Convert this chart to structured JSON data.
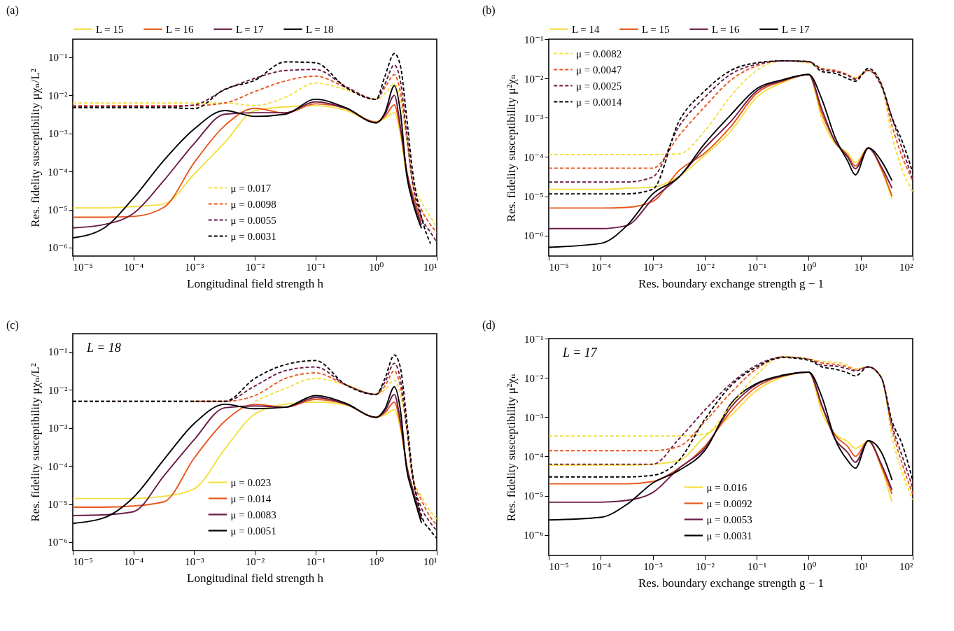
{
  "chart_data": [
    {
      "type": "line",
      "title": "(a)",
      "xlabel": "Longitudinal field strength h",
      "ylabel": "Res. fidelity susceptibility μχₙ/L²",
      "log": "xy",
      "legend": "top",
      "x": [
        1e-05,
        3.2e-05,
        0.0001,
        0.00032,
        0.001,
        0.0032,
        0.01,
        0.032,
        0.1,
        0.32,
        1,
        1.4,
        2,
        2.5,
        3.2,
        4,
        5.6,
        7.9,
        10
      ],
      "xlim": [
        1e-05,
        10
      ],
      "xticks": [
        {
          "value": 1e-05,
          "label": "10⁻⁵"
        },
        {
          "value": 0.0001,
          "label": "10⁻⁴"
        },
        {
          "value": 0.001,
          "label": "10⁻³"
        },
        {
          "value": 0.01,
          "label": "10⁻²"
        },
        {
          "value": 0.1,
          "label": "10⁻¹"
        },
        {
          "value": 1,
          "label": "10⁰"
        },
        {
          "value": 10,
          "label": "10¹"
        }
      ],
      "ylim": [
        6e-07,
        0.3
      ],
      "yticks": [
        {
          "value": 1e-06,
          "label": "10⁻⁶"
        },
        {
          "value": 1e-05,
          "label": "10⁻⁵"
        },
        {
          "value": 0.0001,
          "label": "10⁻⁴"
        },
        {
          "value": 0.001,
          "label": "10⁻³"
        },
        {
          "value": 0.01,
          "label": "10⁻²"
        },
        {
          "value": 0.1,
          "label": "10⁻¹"
        }
      ],
      "series": [
        {
          "name": "L = 15",
          "color": "#f3df40",
          "line_style": "solid",
          "values": [
            1.1e-05,
            1.1e-05,
            1.2e-05,
            1.4e-05,
            8.5e-05,
            0.00058,
            0.004,
            0.005,
            0.0054,
            0.004,
            0.002,
            0.0025,
            0.0035,
            0.001,
            7.9e-05,
            2.5e-05,
            5.6e-06,
            null,
            null
          ]
        },
        {
          "name": "L = 16",
          "color": "#e9561d",
          "line_style": "solid",
          "values": [
            6.3e-06,
            6.3e-06,
            6.6e-06,
            1.15e-05,
            0.00017,
            0.0016,
            0.0046,
            0.0034,
            0.006,
            0.0045,
            0.002,
            0.0028,
            0.0056,
            0.0013,
            0.0001,
            2.5e-05,
            5e-06,
            null,
            null
          ]
        },
        {
          "name": "L = 17",
          "color": "#6b1a48",
          "line_style": "solid",
          "values": [
            3.3e-06,
            4e-06,
            7.9e-06,
            5.9e-05,
            0.00054,
            0.0032,
            0.0035,
            0.0035,
            0.0068,
            0.0045,
            0.0019,
            0.0032,
            0.01,
            0.0016,
            0.0001,
            2e-05,
            4e-06,
            null,
            null
          ]
        },
        {
          "name": "L = 18",
          "color": "#000000",
          "line_style": "solid",
          "values": [
            1.8e-06,
            3.2e-06,
            2e-05,
            0.0002,
            0.0013,
            0.004,
            0.0028,
            0.0032,
            0.0079,
            0.0047,
            0.0019,
            0.0035,
            0.018,
            0.004,
            7.9e-05,
            1.6e-05,
            3.2e-06,
            null,
            null
          ]
        },
        {
          "name": "μ = 0.017",
          "color": "#f3df40",
          "line_style": "dashed",
          "values": [
            0.0063,
            0.0063,
            0.0063,
            0.0063,
            0.0063,
            0.0063,
            0.0054,
            0.0089,
            0.021,
            0.014,
            0.0079,
            0.011,
            0.02,
            0.0079,
            0.0007,
            6.3e-05,
            1.6e-05,
            6.3e-06,
            3.5e-06
          ]
        },
        {
          "name": "μ = 0.0098",
          "color": "#e9561d",
          "line_style": "dashed",
          "values": [
            0.0054,
            0.0054,
            0.0054,
            0.0054,
            0.0054,
            0.0063,
            0.0126,
            0.024,
            0.032,
            0.016,
            0.0079,
            0.016,
            0.035,
            0.0126,
            0.00079,
            5e-05,
            1e-05,
            4e-06,
            2.5e-06
          ]
        },
        {
          "name": "μ = 0.0055",
          "color": "#6b1a48",
          "line_style": "dashed",
          "values": [
            0.005,
            0.005,
            0.005,
            0.005,
            0.0056,
            0.014,
            0.028,
            0.045,
            0.048,
            0.017,
            0.0079,
            0.02,
            0.063,
            0.025,
            0.001,
            5e-05,
            6.3e-06,
            2.5e-06,
            1.4e-06
          ]
        },
        {
          "name": "μ = 0.0031",
          "color": "#000000",
          "line_style": "dashed",
          "values": [
            0.0048,
            0.0048,
            0.0048,
            0.0048,
            0.0045,
            0.0145,
            0.025,
            0.076,
            0.072,
            0.016,
            0.0079,
            0.032,
            0.126,
            0.063,
            0.0025,
            0.0001,
            6.3e-06,
            1.26e-06,
            null
          ]
        }
      ]
    },
    {
      "type": "line",
      "title": "(b)",
      "xlabel": "Res. boundary exchange strength g − 1",
      "ylabel": "Res. fidelity susceptibility μ²χₙ",
      "log": "xy",
      "legend": "top",
      "x": [
        1e-05,
        0.0001,
        0.00032,
        0.001,
        0.0032,
        0.01,
        0.032,
        0.1,
        0.32,
        1,
        1.8,
        3.2,
        5.6,
        7.9,
        14,
        25,
        40,
        63,
        100
      ],
      "xlim": [
        1e-05,
        100
      ],
      "xticks": [
        {
          "value": 1e-05,
          "label": "10⁻⁵"
        },
        {
          "value": 0.0001,
          "label": "10⁻⁴"
        },
        {
          "value": 0.001,
          "label": "10⁻³"
        },
        {
          "value": 0.01,
          "label": "10⁻²"
        },
        {
          "value": 0.1,
          "label": "10⁻¹"
        },
        {
          "value": 1,
          "label": "10⁰"
        },
        {
          "value": 10,
          "label": "10¹"
        },
        {
          "value": 100,
          "label": "10²"
        }
      ],
      "ylim": [
        3e-07,
        0.1
      ],
      "yticks": [
        {
          "value": 1e-06,
          "label": "10⁻⁶"
        },
        {
          "value": 1e-05,
          "label": "10⁻⁵"
        },
        {
          "value": 0.0001,
          "label": "10⁻⁴"
        },
        {
          "value": 0.001,
          "label": "10⁻³"
        },
        {
          "value": 0.01,
          "label": "10⁻²"
        },
        {
          "value": 0.1,
          "label": "10⁻¹"
        }
      ],
      "series": [
        {
          "name": "L = 14",
          "color": "#f3df40",
          "line_style": "solid",
          "values": [
            1.5e-05,
            1.5e-05,
            1.6e-05,
            1.7e-05,
            3.2e-05,
            0.00011,
            0.00046,
            0.0033,
            0.0079,
            0.0126,
            0.00093,
            0.00022,
            0.000126,
            7.2e-05,
            0.00017,
            4.7e-05,
            8.5e-06,
            null,
            null
          ]
        },
        {
          "name": "L = 15",
          "color": "#e9561d",
          "line_style": "solid",
          "values": [
            5e-06,
            5e-06,
            5.2e-06,
            7.4e-06,
            4.5e-05,
            0.000126,
            0.0006,
            0.0042,
            0.0085,
            0.0126,
            0.00126,
            0.00025,
            0.00011,
            5.9e-05,
            0.00017,
            5e-05,
            1e-05,
            null,
            null
          ]
        },
        {
          "name": "L = 16",
          "color": "#6b1a48",
          "line_style": "solid",
          "values": [
            1.5e-06,
            1.5e-06,
            1.8e-06,
            8.5e-06,
            3.1e-05,
            0.00017,
            0.00081,
            0.0048,
            0.0089,
            0.0126,
            0.0016,
            0.00025,
            0.0001,
            5e-05,
            0.00017,
            5.6e-05,
            1.6e-05,
            null,
            null
          ]
        },
        {
          "name": "L = 17",
          "color": "#000000",
          "line_style": "solid",
          "values": [
            5e-07,
            6.3e-07,
            1.8e-06,
            1.15e-05,
            3.1e-05,
            0.00022,
            0.0012,
            0.0055,
            0.0093,
            0.0126,
            0.0029,
            0.00032,
            7.9e-05,
            3.5e-05,
            0.00017,
            7.9e-05,
            2.5e-05,
            null,
            null
          ]
        },
        {
          "name": "μ = 0.0082",
          "color": "#f3df40",
          "line_style": "dashed",
          "values": [
            0.000115,
            0.000115,
            0.000115,
            0.000115,
            0.00012,
            0.00046,
            0.0036,
            0.016,
            0.028,
            0.025,
            0.017,
            0.016,
            0.012,
            0.0105,
            0.016,
            0.0068,
            0.00035,
            4.7e-05,
            1.3e-05
          ]
        },
        {
          "name": "μ = 0.0047",
          "color": "#e9561d",
          "line_style": "dashed",
          "values": [
            5.2e-05,
            5.2e-05,
            5.2e-05,
            5.2e-05,
            0.00035,
            0.0019,
            0.0091,
            0.021,
            0.028,
            0.026,
            0.018,
            0.016,
            0.0126,
            0.01,
            0.016,
            0.0071,
            0.00063,
            0.0001,
            2.5e-05
          ]
        },
        {
          "name": "μ = 0.0025",
          "color": "#6b1a48",
          "line_style": "dashed",
          "values": [
            2.3e-05,
            2.3e-05,
            2.3e-05,
            3.1e-05,
            0.0006,
            0.0033,
            0.0129,
            0.023,
            0.028,
            0.027,
            0.017,
            0.015,
            0.012,
            0.0095,
            0.016,
            0.0063,
            0.001,
            0.00016,
            2.8e-05
          ]
        },
        {
          "name": "μ = 0.0014",
          "color": "#000000",
          "line_style": "dashed",
          "values": [
            1.15e-05,
            1.15e-05,
            1.15e-05,
            1.5e-05,
            0.00081,
            0.0048,
            0.016,
            0.025,
            0.028,
            0.027,
            0.015,
            0.0135,
            0.01,
            0.0085,
            0.018,
            0.0071,
            0.001,
            0.00025,
            4e-05
          ]
        }
      ]
    },
    {
      "type": "line",
      "title": "(c)",
      "xlabel": "Longitudinal field strength h",
      "ylabel": "Res. fidelity susceptibility μχₙ/L²",
      "log": "xy",
      "legend": "bottom",
      "annotations": [
        "L = 18"
      ],
      "x": [
        1e-05,
        3.2e-05,
        0.0001,
        0.00032,
        0.001,
        0.0032,
        0.01,
        0.032,
        0.1,
        0.32,
        1,
        1.4,
        2,
        2.5,
        3.2,
        4,
        5.6,
        7.9,
        10
      ],
      "xlim": [
        1e-05,
        10
      ],
      "xticks": [
        {
          "value": 1e-05,
          "label": "10⁻⁵"
        },
        {
          "value": 0.0001,
          "label": "10⁻⁴"
        },
        {
          "value": 0.001,
          "label": "10⁻³"
        },
        {
          "value": 0.01,
          "label": "10⁻²"
        },
        {
          "value": 0.1,
          "label": "10⁻¹"
        },
        {
          "value": 1,
          "label": "10⁰"
        },
        {
          "value": 10,
          "label": "10¹"
        }
      ],
      "ylim": [
        6e-07,
        0.3
      ],
      "yticks": [
        {
          "value": 1e-06,
          "label": "10⁻⁶"
        },
        {
          "value": 1e-05,
          "label": "10⁻⁵"
        },
        {
          "value": 0.0001,
          "label": "10⁻⁴"
        },
        {
          "value": 0.001,
          "label": "10⁻³"
        },
        {
          "value": 0.01,
          "label": "10⁻²"
        },
        {
          "value": 0.1,
          "label": "10⁻¹"
        }
      ],
      "series": [
        {
          "name": "μ = 0.023",
          "color": "#f3df40",
          "line_style": "solid",
          "values": [
            1.4e-05,
            1.4e-05,
            1.4e-05,
            1.6e-05,
            2.5e-05,
            0.00028,
            0.0023,
            0.0042,
            0.0048,
            0.004,
            0.0019,
            0.0022,
            0.003,
            0.001,
            0.0001,
            2.5e-05,
            4e-06,
            null,
            null
          ]
        },
        {
          "name": "μ = 0.014",
          "color": "#e9561d",
          "line_style": "solid",
          "values": [
            8.3e-06,
            8.3e-06,
            8.9e-06,
            1.15e-05,
            0.00016,
            0.0015,
            0.0042,
            0.0035,
            0.0056,
            0.0042,
            0.0019,
            0.0025,
            0.0048,
            0.0013,
            0.0001,
            2.5e-05,
            4e-06,
            null,
            null
          ]
        },
        {
          "name": "μ = 0.0083",
          "color": "#6b1a48",
          "line_style": "solid",
          "values": [
            5e-06,
            5.2e-06,
            6.3e-06,
            5.6e-05,
            0.00049,
            0.0034,
            0.0038,
            0.0035,
            0.0063,
            0.0042,
            0.0019,
            0.0028,
            0.0076,
            0.0016,
            0.0001,
            2.5e-05,
            4e-06,
            null,
            null
          ]
        },
        {
          "name": "μ = 0.0051",
          "color": "#000000",
          "line_style": "solid",
          "values": [
            3.1e-06,
            4.3e-06,
            1.5e-05,
            0.00015,
            0.0013,
            0.0042,
            0.0032,
            0.0035,
            0.0071,
            0.0044,
            0.0019,
            0.0032,
            0.012,
            0.0032,
            7.9e-05,
            2e-05,
            3.2e-06,
            null,
            null
          ]
        },
        {
          "color": "#f3df40",
          "line_style": "dashed",
          "values": [
            null,
            null,
            null,
            null,
            null,
            null,
            0.005,
            0.011,
            0.02,
            0.0135,
            0.0076,
            0.01,
            0.018,
            0.0079,
            0.001,
            5e-05,
            1.6e-05,
            6.3e-06,
            4e-06
          ]
        },
        {
          "color": "#e9561d",
          "line_style": "dashed",
          "values": [
            null,
            null,
            null,
            null,
            0.005,
            0.005,
            0.0071,
            0.02,
            0.028,
            0.0135,
            0.0076,
            0.0126,
            0.032,
            0.0126,
            0.001,
            5e-05,
            1.26e-05,
            4.5e-06,
            2.8e-06
          ]
        },
        {
          "color": "#6b1a48",
          "line_style": "dashed",
          "values": [
            0.005,
            0.005,
            0.005,
            0.005,
            0.005,
            0.005,
            0.0126,
            0.032,
            0.04,
            0.0135,
            0.0076,
            0.016,
            0.05,
            0.02,
            0.001,
            5e-05,
            7.9e-06,
            3.2e-06,
            2e-06
          ]
        },
        {
          "color": "#000000",
          "line_style": "dashed",
          "values": [
            0.005,
            0.005,
            0.005,
            0.005,
            0.005,
            0.005,
            0.02,
            0.046,
            0.059,
            0.0135,
            0.0076,
            0.02,
            0.083,
            0.04,
            0.0016,
            6.3e-05,
            5e-06,
            2e-06,
            1.26e-06
          ]
        }
      ]
    },
    {
      "type": "line",
      "title": "(d)",
      "xlabel": "Res. boundary exchange strength g − 1",
      "ylabel": "Res. fidelity susceptibility μ²χₙ",
      "log": "xy",
      "legend": "bottom",
      "annotations": [
        "L = 17"
      ],
      "x": [
        1e-05,
        0.0001,
        0.00032,
        0.001,
        0.0032,
        0.01,
        0.032,
        0.1,
        0.32,
        1,
        1.8,
        3.2,
        5.6,
        7.9,
        14,
        25,
        40,
        63,
        100
      ],
      "xlim": [
        1e-05,
        100
      ],
      "xticks": [
        {
          "value": 1e-05,
          "label": "10⁻⁵"
        },
        {
          "value": 0.0001,
          "label": "10⁻⁴"
        },
        {
          "value": 0.001,
          "label": "10⁻³"
        },
        {
          "value": 0.01,
          "label": "10⁻²"
        },
        {
          "value": 0.1,
          "label": "10⁻¹"
        },
        {
          "value": 1,
          "label": "10⁰"
        },
        {
          "value": 10,
          "label": "10¹"
        },
        {
          "value": 100,
          "label": "10²"
        }
      ],
      "ylim": [
        3e-07,
        0.1
      ],
      "yticks": [
        {
          "value": 1e-06,
          "label": "10⁻⁶"
        },
        {
          "value": 1e-05,
          "label": "10⁻⁵"
        },
        {
          "value": 0.0001,
          "label": "10⁻⁴"
        },
        {
          "value": 0.001,
          "label": "10⁻³"
        },
        {
          "value": 0.01,
          "label": "10⁻²"
        },
        {
          "value": 0.1,
          "label": "10⁻¹"
        }
      ],
      "series": [
        {
          "name": "μ = 0.016",
          "color": "#f3df40",
          "line_style": "solid",
          "values": [
            6e-05,
            6e-05,
            6e-05,
            6.3e-05,
            7.8e-05,
            0.00032,
            0.0011,
            0.0048,
            0.0105,
            0.014,
            0.0013,
            0.00037,
            0.00024,
            0.00016,
            0.00024,
            5e-05,
            6.9e-06,
            null,
            null
          ]
        },
        {
          "name": "μ = 0.0092",
          "color": "#e9561d",
          "line_style": "solid",
          "values": [
            2e-05,
            2e-05,
            2e-05,
            2.3e-05,
            5e-05,
            0.00018,
            0.0014,
            0.0059,
            0.0112,
            0.014,
            0.0018,
            0.00035,
            0.00018,
            0.0001,
            0.00025,
            5.6e-05,
            1.1e-05,
            null,
            null
          ]
        },
        {
          "name": "μ = 0.0053",
          "color": "#6b1a48",
          "line_style": "solid",
          "values": [
            6.8e-06,
            6.8e-06,
            7.6e-06,
            1.2e-05,
            5e-05,
            0.00016,
            0.0018,
            0.0068,
            0.0112,
            0.014,
            0.002,
            0.00028,
            0.000126,
            7.1e-05,
            0.00025,
            6.3e-05,
            1.4e-05,
            null,
            null
          ]
        },
        {
          "name": "μ = 0.0031",
          "color": "#000000",
          "line_style": "solid",
          "values": [
            2.4e-06,
            2.8e-06,
            6e-06,
            2.1e-05,
            4.4e-05,
            0.00014,
            0.0022,
            0.0072,
            0.0117,
            0.014,
            0.0032,
            0.00028,
            7.9e-05,
            5e-05,
            0.00025,
            0.000126,
            2.5e-05,
            null,
            null
          ]
        },
        {
          "color": "#f3df40",
          "line_style": "dashed",
          "values": [
            0.00033,
            0.00033,
            0.00033,
            0.00033,
            0.00033,
            0.00037,
            0.002,
            0.012,
            0.035,
            0.03,
            0.026,
            0.025,
            0.021,
            0.017,
            0.019,
            0.0105,
            0.00032,
            3.8e-05,
            7.9e-06
          ]
        },
        {
          "color": "#e9561d",
          "line_style": "dashed",
          "values": [
            0.00014,
            0.00014,
            0.00014,
            0.00014,
            0.00018,
            0.00076,
            0.0042,
            0.017,
            0.033,
            0.03,
            0.024,
            0.022,
            0.019,
            0.016,
            0.019,
            0.01,
            0.0005,
            6.3e-05,
            1.1e-05
          ]
        },
        {
          "color": "#6b1a48",
          "line_style": "dashed",
          "values": [
            6.3e-05,
            6.3e-05,
            6.3e-05,
            6.3e-05,
            0.00028,
            0.0015,
            0.0072,
            0.021,
            0.034,
            0.03,
            0.021,
            0.02,
            0.017,
            0.015,
            0.019,
            0.01,
            0.00063,
            0.0001,
            1.6e-05
          ]
        },
        {
          "color": "#000000",
          "line_style": "dashed",
          "values": [
            3e-05,
            3e-05,
            3e-05,
            3.3e-05,
            7.9e-05,
            0.00087,
            0.0063,
            0.019,
            0.033,
            0.028,
            0.019,
            0.0166,
            0.0135,
            0.0112,
            0.019,
            0.01,
            0.00079,
            0.0002,
            2.5e-05
          ]
        }
      ]
    }
  ]
}
